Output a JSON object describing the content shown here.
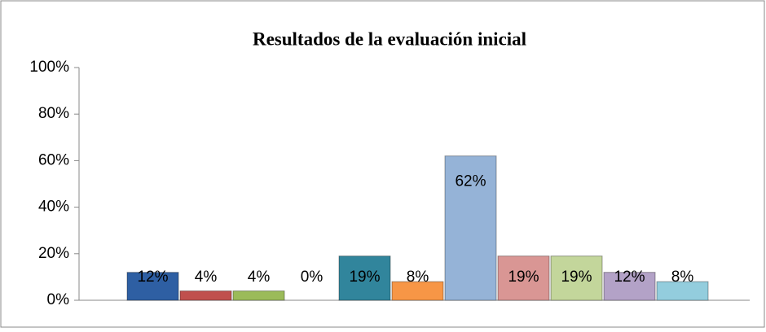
{
  "chart_data": {
    "type": "bar",
    "title": "Resultados de la evaluación inicial",
    "categories": [
      null,
      null,
      null,
      null,
      null,
      null,
      null,
      null,
      null,
      null,
      null
    ],
    "values": [
      12,
      4,
      4,
      0,
      19,
      8,
      62,
      19,
      19,
      12,
      8
    ],
    "value_labels": [
      "12%",
      "4%",
      "4%",
      "0%",
      "19%",
      "8%",
      "62%",
      "19%",
      "19%",
      "12%",
      "8%"
    ],
    "colors": [
      "#2e5fa3",
      "#c0504d",
      "#9bbb59",
      "#8064a2",
      "#31859c",
      "#f79646",
      "#95b3d7",
      "#d99694",
      "#c3d69b",
      "#b3a2c7",
      "#93cddd"
    ],
    "ylim": [
      0,
      100
    ],
    "yticks": [
      {
        "value": 0,
        "label": "0%"
      },
      {
        "value": 20,
        "label": "20%"
      },
      {
        "value": 40,
        "label": "40%"
      },
      {
        "value": 60,
        "label": "60%"
      },
      {
        "value": 80,
        "label": "80%"
      },
      {
        "value": 100,
        "label": "100%"
      }
    ],
    "grid": false
  }
}
